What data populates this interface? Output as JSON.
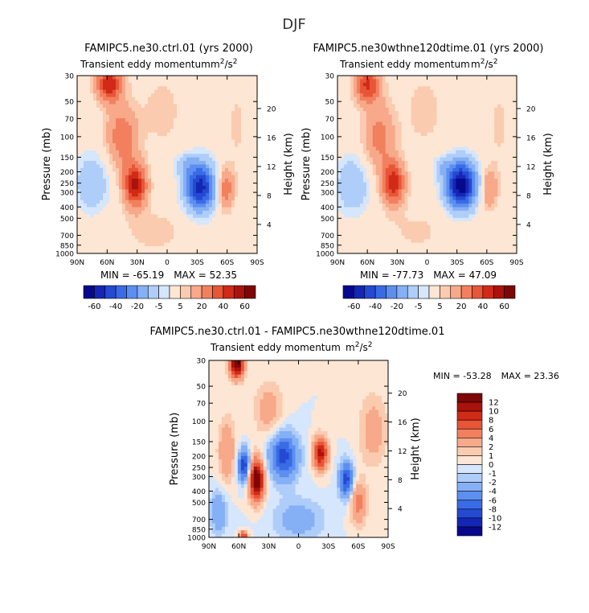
{
  "figure_title": "DJF",
  "colors": {
    "neg": [
      "#08088c",
      "#1426b4",
      "#2449d2",
      "#3a6be6",
      "#5c8ff0",
      "#86b0f5",
      "#afcdf9",
      "#d6e6fc"
    ],
    "pos": [
      "#fde6d4",
      "#fbcbb0",
      "#f7a98a",
      "#f2805f",
      "#e85537",
      "#d12a17",
      "#aa120b",
      "#7e0606"
    ]
  },
  "chart_data": [
    {
      "type": "heatmap",
      "title": "FAMIPC5.ne30.ctrl.01 (yrs 2000)",
      "subtitle": "Transient eddy momentum",
      "units_base": "m",
      "units_sup1": "2",
      "units_mid": "/s",
      "units_sup2": "2",
      "xlabel": "",
      "ylabel": "Pressure (mb)",
      "y2label": "Height (km)",
      "x_ticks": [
        "90N",
        "60N",
        "30N",
        "0",
        "30S",
        "60S",
        "90S"
      ],
      "y_ticks": [
        "30",
        "50",
        "70",
        "100",
        "150",
        "200",
        "250",
        "300",
        "400",
        "500",
        "700",
        "850",
        "1000"
      ],
      "y2_ticks": [
        "20",
        "16",
        "12",
        "8",
        "4"
      ],
      "stats_min_label": "MIN = ",
      "min": "-65.19",
      "stats_max_label": "MAX = ",
      "max": "52.35",
      "levels": [
        "-60",
        "-40",
        "-20",
        "-5",
        "5",
        "20",
        "40",
        "60"
      ],
      "features": [
        {
          "lat": -33,
          "p": 270,
          "value": -65,
          "wx": 11,
          "wp": 0.34
        },
        {
          "lat": -18,
          "p": 170,
          "value": -14,
          "wx": 8,
          "wp": 0.14
        },
        {
          "lat": 75,
          "p": 250,
          "value": -20,
          "wx": 12,
          "wp": 0.4
        },
        {
          "lat": 32,
          "p": 260,
          "value": 52,
          "wx": 8,
          "wp": 0.3
        },
        {
          "lat": 45,
          "p": 100,
          "value": 28,
          "wx": 11,
          "wp": 0.45
        },
        {
          "lat": 58,
          "p": 35,
          "value": 48,
          "wx": 9,
          "wp": 0.25
        },
        {
          "lat": -58,
          "p": 280,
          "value": 30,
          "wx": 6,
          "wp": 0.28
        },
        {
          "lat": -70,
          "p": 80,
          "value": 6,
          "wx": 9,
          "wp": 0.7
        },
        {
          "lat": 5,
          "p": 60,
          "value": 8,
          "wx": 14,
          "wp": 0.5
        },
        {
          "lat": 12,
          "p": 650,
          "value": 7,
          "wx": 25,
          "wp": 0.35
        }
      ]
    },
    {
      "type": "heatmap",
      "title": "FAMIPC5.ne30wthne120dtime.01 (yrs 2000)",
      "subtitle": "Transient eddy momentum",
      "units_base": "m",
      "units_sup1": "2",
      "units_mid": "/s",
      "units_sup2": "2",
      "xlabel": "",
      "ylabel": "Pressure (mb)",
      "y2label": "Height (km)",
      "x_ticks": [
        "90N",
        "60N",
        "30N",
        "0",
        "30S",
        "60S",
        "90S"
      ],
      "y_ticks": [
        "30",
        "50",
        "70",
        "100",
        "150",
        "200",
        "250",
        "300",
        "400",
        "500",
        "700",
        "850",
        "1000"
      ],
      "y2_ticks": [
        "20",
        "16",
        "12",
        "8",
        "4"
      ],
      "stats_min_label": "MIN = ",
      "min": "-77.73",
      "stats_max_label": "MAX = ",
      "max": "47.09",
      "levels": [
        "-60",
        "-40",
        "-20",
        "-5",
        "5",
        "20",
        "40",
        "60"
      ],
      "features": [
        {
          "lat": -34,
          "p": 260,
          "value": -78,
          "wx": 11,
          "wp": 0.33
        },
        {
          "lat": -15,
          "p": 180,
          "value": -12,
          "wx": 7,
          "wp": 0.15
        },
        {
          "lat": 75,
          "p": 260,
          "value": -20,
          "wx": 12,
          "wp": 0.4
        },
        {
          "lat": 34,
          "p": 250,
          "value": 47,
          "wx": 8,
          "wp": 0.3
        },
        {
          "lat": 48,
          "p": 100,
          "value": 25,
          "wx": 11,
          "wp": 0.45
        },
        {
          "lat": 60,
          "p": 36,
          "value": 42,
          "wx": 9,
          "wp": 0.25
        },
        {
          "lat": -62,
          "p": 280,
          "value": 22,
          "wx": 6,
          "wp": 0.28
        },
        {
          "lat": -72,
          "p": 80,
          "value": 6,
          "wx": 9,
          "wp": 0.7
        },
        {
          "lat": 3,
          "p": 60,
          "value": 8,
          "wx": 14,
          "wp": 0.5
        },
        {
          "lat": 10,
          "p": 650,
          "value": 6,
          "wx": 25,
          "wp": 0.35
        }
      ]
    },
    {
      "type": "heatmap",
      "title": "FAMIPC5.ne30.ctrl.01 - FAMIPC5.ne30wthne120dtime.01",
      "subtitle": "Transient eddy momentum",
      "units_base": "m",
      "units_sup1": "2",
      "units_mid": "/s",
      "units_sup2": "2",
      "xlabel": "",
      "ylabel": "Pressure (mb)",
      "y2label": "Height (km)",
      "x_ticks": [
        "90N",
        "60N",
        "30N",
        "0",
        "30S",
        "60S",
        "90S"
      ],
      "y_ticks": [
        "30",
        "50",
        "70",
        "100",
        "150",
        "200",
        "250",
        "300",
        "400",
        "500",
        "700",
        "850",
        "1000"
      ],
      "y2_ticks": [
        "20",
        "16",
        "12",
        "8",
        "4"
      ],
      "stats_min_label": "MIN = ",
      "min": "-53.28",
      "stats_max_label": "MAX = ",
      "max": "23.36",
      "levels": [
        "12",
        "10",
        "8",
        "6",
        "4",
        "2",
        "1",
        "0",
        "-1",
        "-2",
        "-4",
        "-6",
        "-8",
        "-10",
        "-12"
      ],
      "features": [
        {
          "lat": 42,
          "p": 320,
          "value": 15,
          "wx": 5,
          "wp": 0.28
        },
        {
          "lat": 62,
          "p": 32,
          "value": 14,
          "wx": 5,
          "wp": 0.2
        },
        {
          "lat": 55,
          "p": 240,
          "value": -10,
          "wx": 4,
          "wp": 0.22
        },
        {
          "lat": 15,
          "p": 200,
          "value": -9,
          "wx": 10,
          "wp": 0.32
        },
        {
          "lat": -22,
          "p": 190,
          "value": 11,
          "wx": 5,
          "wp": 0.22
        },
        {
          "lat": -48,
          "p": 320,
          "value": -9,
          "wx": 5,
          "wp": 0.25
        },
        {
          "lat": -60,
          "p": 500,
          "value": 5,
          "wx": 6,
          "wp": 0.3
        },
        {
          "lat": -75,
          "p": 120,
          "value": 3,
          "wx": 10,
          "wp": 0.5
        },
        {
          "lat": 72,
          "p": 180,
          "value": 4,
          "wx": 6,
          "wp": 0.45
        },
        {
          "lat": 30,
          "p": 80,
          "value": 3,
          "wx": 10,
          "wp": 0.4
        },
        {
          "lat": 0,
          "p": 700,
          "value": -3,
          "wx": 18,
          "wp": 0.3
        },
        {
          "lat": 80,
          "p": 600,
          "value": -4,
          "wx": 6,
          "wp": 0.3
        },
        {
          "lat": 55,
          "p": 950,
          "value": 8,
          "wx": 3,
          "wp": 0.05
        }
      ]
    }
  ]
}
